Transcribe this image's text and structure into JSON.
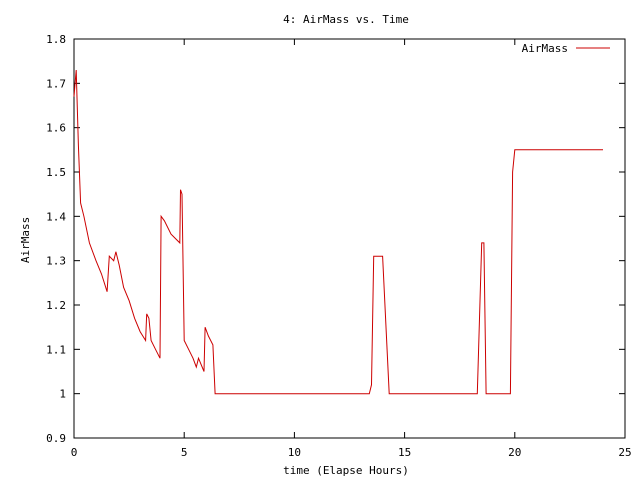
{
  "chart_data": {
    "type": "line",
    "title": "4: AirMass vs. Time",
    "xlabel": "time (Elapse Hours)",
    "ylabel": "AirMass",
    "xlim": [
      0,
      25
    ],
    "ylim": [
      0.9,
      1.8
    ],
    "grid": false,
    "legend_position": "top-right",
    "x_ticks": [
      "0",
      "5",
      "10",
      "15",
      "20",
      "25"
    ],
    "y_ticks": [
      "0.9",
      "1",
      "1.1",
      "1.2",
      "1.3",
      "1.4",
      "1.5",
      "1.6",
      "1.7",
      "1.8"
    ],
    "series": [
      {
        "name": "AirMass",
        "color": "#cc0000",
        "points": [
          [
            0.0,
            1.67
          ],
          [
            0.1,
            1.73
          ],
          [
            0.2,
            1.56
          ],
          [
            0.3,
            1.43
          ],
          [
            0.45,
            1.4
          ],
          [
            0.7,
            1.34
          ],
          [
            1.0,
            1.3
          ],
          [
            1.25,
            1.27
          ],
          [
            1.5,
            1.23
          ],
          [
            1.6,
            1.31
          ],
          [
            1.8,
            1.3
          ],
          [
            1.9,
            1.32
          ],
          [
            2.05,
            1.29
          ],
          [
            2.25,
            1.24
          ],
          [
            2.5,
            1.21
          ],
          [
            2.75,
            1.17
          ],
          [
            3.0,
            1.14
          ],
          [
            3.25,
            1.12
          ],
          [
            3.3,
            1.18
          ],
          [
            3.4,
            1.17
          ],
          [
            3.5,
            1.12
          ],
          [
            3.7,
            1.1
          ],
          [
            3.9,
            1.08
          ],
          [
            3.95,
            1.4
          ],
          [
            4.1,
            1.39
          ],
          [
            4.4,
            1.36
          ],
          [
            4.6,
            1.35
          ],
          [
            4.8,
            1.34
          ],
          [
            4.83,
            1.46
          ],
          [
            4.9,
            1.45
          ],
          [
            5.0,
            1.12
          ],
          [
            5.2,
            1.1
          ],
          [
            5.4,
            1.08
          ],
          [
            5.55,
            1.06
          ],
          [
            5.65,
            1.08
          ],
          [
            5.9,
            1.05
          ],
          [
            5.95,
            1.15
          ],
          [
            6.1,
            1.13
          ],
          [
            6.3,
            1.11
          ],
          [
            6.4,
            1.0
          ],
          [
            13.4,
            1.0
          ],
          [
            13.5,
            1.02
          ],
          [
            13.6,
            1.31
          ],
          [
            14.0,
            1.31
          ],
          [
            14.3,
            1.0
          ],
          [
            18.3,
            1.0
          ],
          [
            18.5,
            1.34
          ],
          [
            18.6,
            1.34
          ],
          [
            18.7,
            1.0
          ],
          [
            19.8,
            1.0
          ],
          [
            19.9,
            1.5
          ],
          [
            20.0,
            1.55
          ],
          [
            24.0,
            1.55
          ]
        ]
      }
    ]
  }
}
